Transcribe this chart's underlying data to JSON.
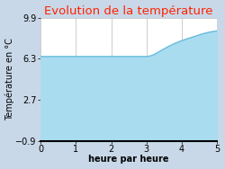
{
  "title": "Evolution de la température",
  "title_color": "#ff2200",
  "xlabel": "heure par heure",
  "ylabel": "Température en °C",
  "background_color": "#c8d8e8",
  "plot_bg_color": "#ffffff",
  "line_color": "#66bbdd",
  "fill_color": "#aadcf0",
  "ylim": [
    -0.9,
    9.9
  ],
  "xlim": [
    0,
    5
  ],
  "yticks": [
    -0.9,
    2.7,
    6.3,
    9.9
  ],
  "xticks": [
    0,
    1,
    2,
    3,
    4,
    5
  ],
  "x": [
    0,
    0.5,
    1.0,
    1.5,
    2.0,
    2.5,
    3.0,
    3.1,
    3.2,
    3.4,
    3.6,
    3.8,
    4.0,
    4.2,
    4.4,
    4.6,
    4.8,
    5.0
  ],
  "y": [
    6.5,
    6.5,
    6.5,
    6.5,
    6.5,
    6.5,
    6.5,
    6.55,
    6.65,
    7.0,
    7.35,
    7.65,
    7.9,
    8.1,
    8.3,
    8.5,
    8.65,
    8.75
  ],
  "fill_baseline": -0.9,
  "title_fontsize": 9.5,
  "axis_fontsize": 7,
  "ylabel_fontsize": 7,
  "tick_fontsize": 7
}
